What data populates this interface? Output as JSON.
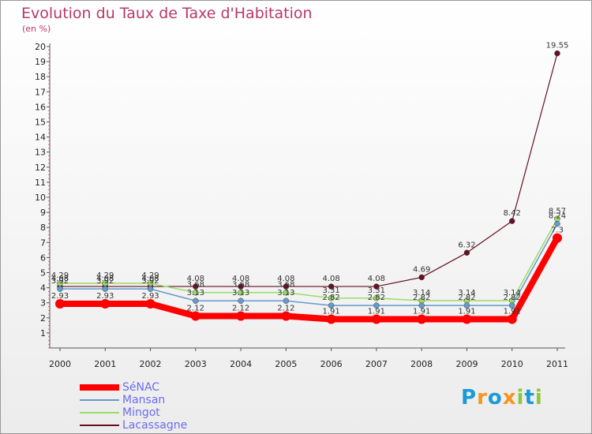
{
  "chart_data": {
    "type": "line",
    "title": "Evolution du Taux de Taxe d'Habitation",
    "ylabel": "(en %)",
    "ylim": [
      0,
      20
    ],
    "yticks": [
      "1",
      "2",
      "3",
      "4",
      "5",
      "6",
      "7",
      "8",
      "9",
      "10",
      "11",
      "12",
      "13",
      "14",
      "15",
      "16",
      "17",
      "18",
      "19",
      "20"
    ],
    "x": [
      "2000",
      "2001",
      "2002",
      "2003",
      "2004",
      "2005",
      "2006",
      "2007",
      "2008",
      "2009",
      "2010",
      "2011"
    ],
    "grid": false,
    "legend_position": "bottom-left",
    "series": [
      {
        "name": "SéNAC",
        "color": "#ff0000",
        "values": [
          2.93,
          2.93,
          2.93,
          2.12,
          2.12,
          2.12,
          1.91,
          1.91,
          1.91,
          1.91,
          1.91,
          7.3
        ],
        "labels": [
          "2.93",
          "2.93",
          "2.93",
          "2.12",
          "2.12",
          "2.12",
          "1.91",
          "1.91",
          "1.91",
          "1.91",
          "1.91",
          "7.3"
        ]
      },
      {
        "name": "Mansan",
        "color": "#6699cc",
        "values": [
          3.92,
          3.92,
          3.92,
          3.13,
          3.13,
          3.13,
          2.82,
          2.82,
          2.82,
          2.82,
          2.82,
          8.24
        ],
        "labels": [
          "3.92",
          "3.92",
          "3.92",
          "3.13",
          "3.13",
          "3.13",
          "2.82",
          "2.82",
          "2.82",
          "2.82",
          "2.82",
          "8.24"
        ]
      },
      {
        "name": "Mingot",
        "color": "#99dd66",
        "values": [
          4.29,
          4.29,
          4.29,
          3.68,
          3.68,
          3.68,
          3.31,
          3.31,
          3.14,
          3.14,
          3.14,
          8.57
        ],
        "labels": [
          "4.29",
          "4.29",
          "4.29",
          "3.68",
          "3.68",
          "3.68",
          "3.31",
          "3.31",
          "3.14",
          "3.14",
          "3.14",
          "8.57"
        ]
      },
      {
        "name": "Lacassagne",
        "color": "#661122",
        "values": [
          4.08,
          4.08,
          4.08,
          4.08,
          4.08,
          4.08,
          4.08,
          4.08,
          4.69,
          6.32,
          8.42,
          19.55
        ],
        "labels": [
          "4.08",
          "4.08",
          "4.08",
          "4.08",
          "4.08",
          "4.08",
          "4.08",
          "4.08",
          "4.69",
          "6.32",
          "8.42",
          "19.55"
        ]
      }
    ]
  },
  "brand": {
    "text": "Proxiti",
    "letters": [
      {
        "ch": "P",
        "color": "#1a9ad6"
      },
      {
        "ch": "r",
        "color": "#f7941d"
      },
      {
        "ch": "o",
        "color": "#1a9ad6"
      },
      {
        "ch": "x",
        "color": "#f7941d"
      },
      {
        "ch": "i",
        "color": "#8dc63f"
      },
      {
        "ch": "t",
        "color": "#1a9ad6"
      },
      {
        "ch": "i",
        "color": "#8dc63f"
      }
    ]
  }
}
